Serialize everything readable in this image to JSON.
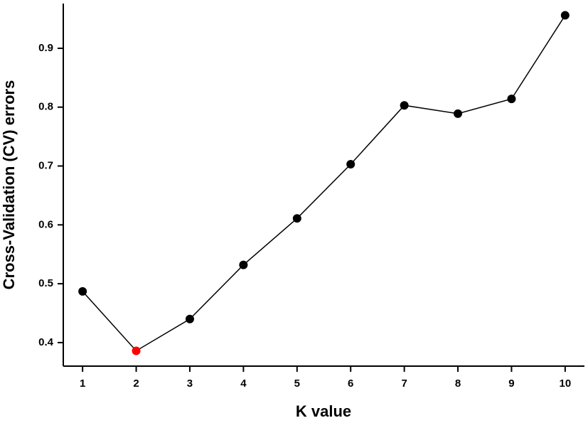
{
  "chart_data": {
    "type": "line",
    "x_label": "K value",
    "y_label": "Cross-Validation (CV) errors",
    "x": [
      1,
      2,
      3,
      4,
      5,
      6,
      7,
      8,
      9,
      10
    ],
    "series": [
      {
        "color": "#000000",
        "values": [
          0.487,
          0.386,
          0.44,
          0.532,
          0.611,
          0.703,
          0.803,
          0.789,
          0.814,
          0.956
        ],
        "point_colors": [
          "#000000",
          "#ff0000",
          "#000000",
          "#000000",
          "#000000",
          "#000000",
          "#000000",
          "#000000",
          "#000000",
          "#000000"
        ]
      }
    ],
    "xlim": [
      0.64,
      10.36
    ],
    "ylim": [
      0.36,
      0.976
    ],
    "xticks": [
      1,
      2,
      3,
      4,
      5,
      6,
      7,
      8,
      9,
      10
    ],
    "yticks": [
      0.4,
      0.5,
      0.6,
      0.7,
      0.8,
      0.9
    ]
  }
}
